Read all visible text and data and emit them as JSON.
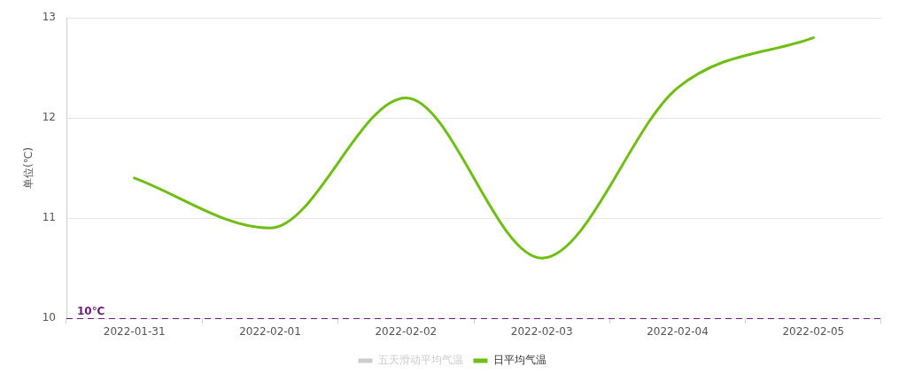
{
  "chart_data": {
    "type": "line",
    "categories": [
      "2022-01-31",
      "2022-02-01",
      "2022-02-02",
      "2022-02-03",
      "2022-02-04",
      "2022-02-05"
    ],
    "ylabel": "单位(℃)",
    "ylim": [
      10,
      13
    ],
    "yticks": [
      10,
      11,
      12,
      13
    ],
    "grid": "y",
    "legend": "bottom",
    "series": [
      {
        "name": "五天滑动平均气温",
        "color": "#cccccc",
        "values": [
          null,
          null,
          null,
          null,
          null,
          null
        ]
      },
      {
        "name": "日平均气温",
        "color": "#6fbf13",
        "values": [
          11.4,
          10.9,
          12.2,
          10.6,
          12.3,
          12.8
        ]
      }
    ],
    "ref_lines": [
      {
        "axis": "y",
        "value": 10,
        "label": "10℃",
        "color": "#6a1b7a",
        "line_style": "dashed"
      }
    ]
  }
}
